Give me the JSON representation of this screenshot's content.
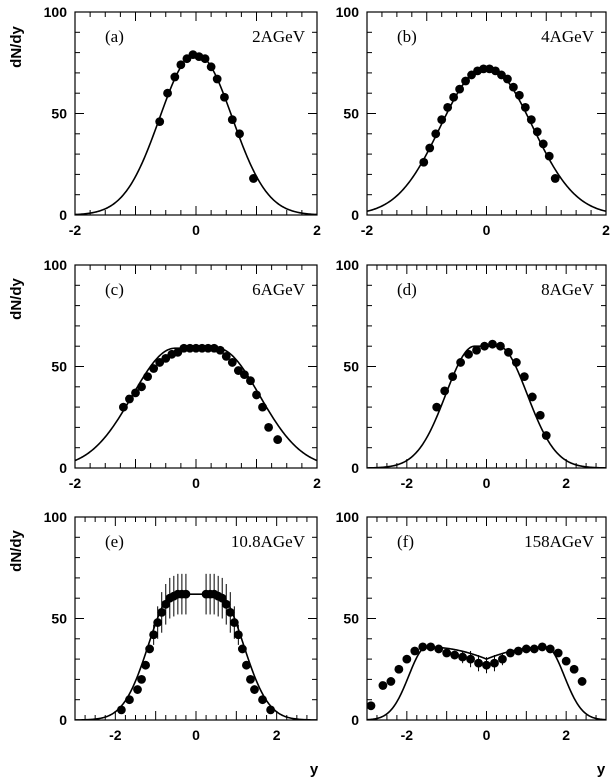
{
  "figure": {
    "ylabel": "dN/dy",
    "xlabel": "y"
  },
  "chart_data": [
    {
      "type": "scatter",
      "panel_label": "(a)",
      "energy_label": "2AGeV",
      "xlim": [
        -2,
        2
      ],
      "ylim": [
        0,
        100
      ],
      "xticks": [
        -2,
        0,
        2
      ],
      "yticks": [
        0,
        50,
        100
      ],
      "series": [
        {
          "kind": "points",
          "x": [
            -0.6,
            -0.47,
            -0.35,
            -0.25,
            -0.15,
            -0.05,
            0.05,
            0.15,
            0.25,
            0.35,
            0.47,
            0.6,
            0.72,
            0.95
          ],
          "y": [
            46,
            60,
            68,
            74,
            77,
            79,
            78,
            77,
            73,
            67,
            58,
            47,
            40,
            18
          ]
        },
        {
          "kind": "curve",
          "amplitude": 79,
          "sigma": 0.58,
          "plateau": 0.02
        }
      ]
    },
    {
      "type": "scatter",
      "panel_label": "(b)",
      "energy_label": "4AGeV",
      "xlim": [
        -2,
        2
      ],
      "ylim": [
        0,
        100
      ],
      "xticks": [
        -2,
        0,
        2
      ],
      "yticks": [
        0,
        50,
        100
      ],
      "series": [
        {
          "kind": "points",
          "x": [
            -1.05,
            -0.95,
            -0.85,
            -0.75,
            -0.65,
            -0.55,
            -0.45,
            -0.35,
            -0.25,
            -0.15,
            -0.05,
            0.05,
            0.15,
            0.25,
            0.35,
            0.45,
            0.55,
            0.65,
            0.75,
            0.85,
            0.95,
            1.05,
            1.15
          ],
          "y": [
            26,
            33,
            40,
            47,
            53,
            58,
            62,
            66,
            69,
            71,
            72,
            72,
            71,
            69,
            67,
            63,
            59,
            53,
            47,
            41,
            35,
            29,
            18
          ]
        },
        {
          "kind": "curve",
          "amplitude": 72,
          "sigma": 0.72,
          "plateau": 0.05
        }
      ]
    },
    {
      "type": "scatter",
      "panel_label": "(c)",
      "energy_label": "6AGeV",
      "xlim": [
        -2,
        2
      ],
      "ylim": [
        0,
        100
      ],
      "xticks": [
        -2,
        0,
        2
      ],
      "yticks": [
        0,
        50,
        100
      ],
      "series": [
        {
          "kind": "points",
          "x": [
            -1.2,
            -1.1,
            -1.0,
            -0.9,
            -0.8,
            -0.7,
            -0.6,
            -0.5,
            -0.4,
            -0.3,
            -0.2,
            -0.1,
            0.0,
            0.1,
            0.2,
            0.3,
            0.4,
            0.5,
            0.6,
            0.7,
            0.8,
            0.9,
            1.0,
            1.1,
            1.2,
            1.35
          ],
          "y": [
            30,
            34,
            37,
            40,
            45,
            49,
            52,
            54,
            56,
            57,
            59,
            59,
            59,
            59,
            59,
            59,
            58,
            55,
            52,
            48,
            46,
            43,
            36,
            30,
            20,
            14
          ]
        },
        {
          "kind": "curve",
          "amplitude": 59,
          "sigma": 0.7,
          "plateau": 0.35
        }
      ]
    },
    {
      "type": "scatter",
      "panel_label": "(d)",
      "energy_label": "8AGeV",
      "xlim": [
        -3,
        3
      ],
      "ylim": [
        0,
        100
      ],
      "xticks": [
        -2,
        0,
        2
      ],
      "yticks": [
        0,
        50,
        100
      ],
      "series": [
        {
          "kind": "points",
          "x": [
            -1.25,
            -1.05,
            -0.85,
            -0.65,
            -0.45,
            -0.25,
            -0.05,
            0.15,
            0.35,
            0.55,
            0.75,
            0.95,
            1.15,
            1.35,
            1.5
          ],
          "y": [
            30,
            38,
            45,
            52,
            56,
            58,
            60,
            61,
            60,
            57,
            52,
            45,
            35,
            26,
            16
          ]
        },
        {
          "kind": "curve",
          "amplitude": 60,
          "sigma": 0.72,
          "plateau": 0.3
        }
      ]
    },
    {
      "type": "scatter",
      "panel_label": "(e)",
      "energy_label": "10.8AGeV",
      "xlim": [
        -3,
        3
      ],
      "ylim": [
        0,
        100
      ],
      "xticks": [
        -2,
        0,
        2
      ],
      "yticks": [
        0,
        50,
        100
      ],
      "series": [
        {
          "kind": "points",
          "x": [
            -1.85,
            -1.65,
            -1.45,
            -1.35,
            -1.25,
            -1.15,
            -1.05,
            -0.95,
            -0.85,
            -0.75,
            -0.65,
            -0.55,
            -0.45,
            -0.35,
            -0.25,
            0.25,
            0.35,
            0.45,
            0.55,
            0.65,
            0.75,
            0.85,
            0.95,
            1.05,
            1.15,
            1.25,
            1.35,
            1.45,
            1.65,
            1.85
          ],
          "y": [
            5,
            10,
            15,
            20,
            27,
            35,
            42,
            48,
            53,
            57,
            60,
            61,
            62,
            62,
            62,
            62,
            62,
            62,
            61,
            60,
            57,
            53,
            48,
            42,
            35,
            27,
            20,
            15,
            10,
            5
          ],
          "yerr": [
            0,
            0,
            0,
            0,
            0,
            0,
            5,
            8,
            10,
            10,
            10,
            10,
            10,
            10,
            10,
            10,
            10,
            10,
            10,
            10,
            10,
            10,
            8,
            5,
            0,
            0,
            0,
            0,
            0,
            0
          ]
        },
        {
          "kind": "curve",
          "amplitude": 62,
          "sigma": 0.62,
          "plateau": 0.55
        }
      ]
    },
    {
      "type": "scatter",
      "panel_label": "(f)",
      "energy_label": "158AGeV",
      "xlim": [
        -3,
        3
      ],
      "ylim": [
        0,
        100
      ],
      "xticks": [
        -2,
        0,
        2
      ],
      "yticks": [
        0,
        50,
        100
      ],
      "series": [
        {
          "kind": "points",
          "x": [
            -2.9,
            -2.6,
            -2.4,
            -2.2,
            -2.0,
            -1.8,
            -1.6,
            -1.4,
            -1.2,
            -1.0,
            -0.8,
            -0.6,
            -0.4,
            -0.2,
            0.0,
            0.2,
            0.4,
            0.6,
            0.8,
            1.0,
            1.2,
            1.4,
            1.6,
            1.8,
            2.0,
            2.2,
            2.4
          ],
          "y": [
            7,
            17,
            19,
            25,
            30,
            34,
            36,
            36,
            35,
            33,
            32,
            31,
            30,
            28,
            27,
            28,
            30,
            33,
            34,
            35,
            35,
            36,
            35,
            33,
            29,
            25,
            19
          ],
          "yerr": [
            0,
            0,
            0,
            0,
            0,
            0,
            0,
            0,
            0,
            0,
            0,
            3,
            4,
            4,
            4,
            4,
            3,
            0,
            0,
            0,
            0,
            0,
            0,
            0,
            0,
            0,
            0
          ]
        },
        {
          "kind": "curve",
          "dip": true,
          "amplitude": 36,
          "center_level": 30,
          "peak_position": 1.5,
          "sigma": 0.45
        }
      ]
    }
  ]
}
